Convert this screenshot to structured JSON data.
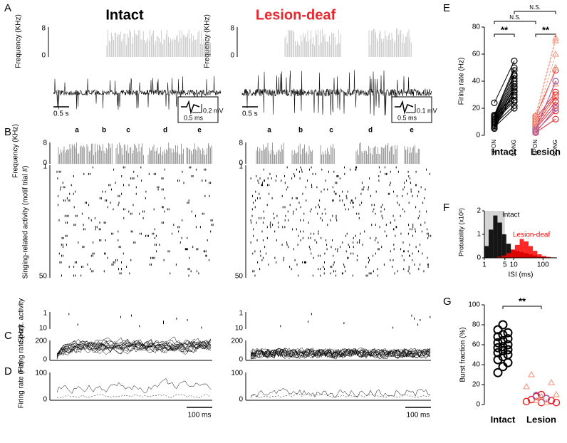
{
  "figure": {
    "titles": {
      "intact": "Intact",
      "lesion": "Lesion-deaf"
    },
    "panel_a": {
      "letter": "A",
      "freq_label": "Frequency (KHz)",
      "freq_ticks": [
        "8",
        "0"
      ],
      "time_scale": "0.5 s",
      "inset_intact": {
        "volt": "0.2 mV",
        "time": "0.5 ms"
      },
      "inset_lesion": {
        "volt": "0.1 mV",
        "time": "0.5 ms"
      }
    },
    "panel_b": {
      "letter": "B",
      "freq_label": "Frequency (KHz)",
      "freq_ticks": [
        "8",
        "0"
      ],
      "syllables": [
        "a",
        "b",
        "c",
        "d",
        "e"
      ],
      "raster_label": "Singing-related activity (motif trial #)",
      "raster_ticks": [
        "1",
        "50"
      ],
      "spont_label": "Spont. activity",
      "spont_ticks": [
        "1",
        "10"
      ]
    },
    "panel_c": {
      "letter": "C",
      "rate_label": "Firing rate (Hz)",
      "rate_ticks": [
        "200",
        "0"
      ]
    },
    "panel_d": {
      "letter": "D",
      "rate_label": "Firing rate (Hz)",
      "rate_ticks": [
        "100",
        "0"
      ],
      "time_scale": "100 ms"
    }
  },
  "chart_data": [
    {
      "type": "paired",
      "letter": "E",
      "ylabel": "Firing rate (Hz)",
      "ylim": [
        0,
        80
      ],
      "yticks": [
        0,
        20,
        40,
        60,
        80
      ],
      "categories": [
        "SPON",
        "SONG",
        "SPON",
        "SONG"
      ],
      "group_labels": [
        "Intact",
        "Lesion"
      ],
      "annotations": [
        "**",
        "**",
        "N.S.",
        "N.S."
      ],
      "groups": [
        {
          "color": "#000000",
          "marker": "circle",
          "spon": [
            24,
            15,
            14,
            13,
            12,
            11,
            10,
            9,
            8,
            7,
            6,
            5,
            15,
            12,
            10,
            8,
            6,
            14
          ],
          "song": [
            55,
            50,
            48,
            45,
            42,
            40,
            38,
            36,
            35,
            33,
            32,
            30,
            28,
            26,
            25,
            22,
            20,
            44
          ]
        },
        {
          "color": "#e8262b",
          "marker": "circle",
          "spon": [
            14,
            12,
            10,
            8,
            6,
            5,
            3,
            2
          ],
          "song": [
            48,
            32,
            30,
            28,
            25,
            22,
            18,
            12
          ]
        },
        {
          "color": "#f4a08a",
          "marker": "triangle",
          "spon": [
            15,
            13,
            11,
            9,
            7,
            5,
            2
          ],
          "song": [
            72,
            70,
            60,
            50,
            38,
            30,
            20
          ]
        },
        {
          "color": "#9b5aa8",
          "marker": "circle",
          "spon": [
            4,
            2
          ],
          "song": [
            40,
            20
          ]
        }
      ]
    },
    {
      "type": "histogram",
      "letter": "F",
      "ylabel": "Probability (x10²)",
      "xlabel": "ISI (ms)",
      "log_x": true,
      "xlim": [
        1,
        300
      ],
      "xticks": [
        1,
        5,
        10,
        100
      ],
      "ylim": [
        0,
        2
      ],
      "yticks": [
        0,
        1,
        2
      ],
      "bins": [
        1,
        1.4,
        2,
        2.8,
        4,
        5.6,
        8,
        11,
        16,
        22,
        32,
        45,
        64,
        90,
        128,
        180,
        256
      ],
      "series": [
        {
          "name": "Intact",
          "color": "#000000",
          "values": [
            0.5,
            1.2,
            1.8,
            1.5,
            1.0,
            0.6,
            0.35,
            0.3,
            0.25,
            0.2,
            0.15,
            0.1,
            0.05,
            0.03,
            0.02,
            0.01
          ]
        },
        {
          "name": "Lesion-deaf",
          "color": "#ff0000",
          "values": [
            0,
            0,
            0.02,
            0.05,
            0.1,
            0.2,
            0.35,
            0.55,
            0.8,
            0.7,
            0.5,
            0.3,
            0.15,
            0.08,
            0.04,
            0.02
          ]
        }
      ]
    },
    {
      "type": "swarm",
      "letter": "G",
      "ylabel": "Burst fraction (%)",
      "ylim": [
        0,
        100
      ],
      "yticks": [
        0,
        20,
        40,
        60,
        80,
        100
      ],
      "categories": [
        "Intact",
        "Lesion"
      ],
      "annotation": "**",
      "groups": [
        {
          "category": 0,
          "color": "#000000",
          "marker": "circle",
          "values": [
            80,
            75,
            72,
            70,
            68,
            66,
            64,
            62,
            60,
            58,
            57,
            55,
            54,
            52,
            50,
            48,
            45,
            42,
            38,
            32
          ]
        },
        {
          "category": 1,
          "color": "#e8262b",
          "marker": "circle",
          "values": [
            10,
            8,
            6,
            5,
            4,
            3,
            2,
            2
          ]
        },
        {
          "category": 1,
          "color": "#9b5aa8",
          "marker": "circle",
          "values": [
            9,
            6
          ]
        },
        {
          "category": 1,
          "color": "#f4a08a",
          "marker": "triangle",
          "values": [
            30,
            22,
            18,
            10,
            8,
            4,
            2
          ]
        }
      ]
    }
  ]
}
